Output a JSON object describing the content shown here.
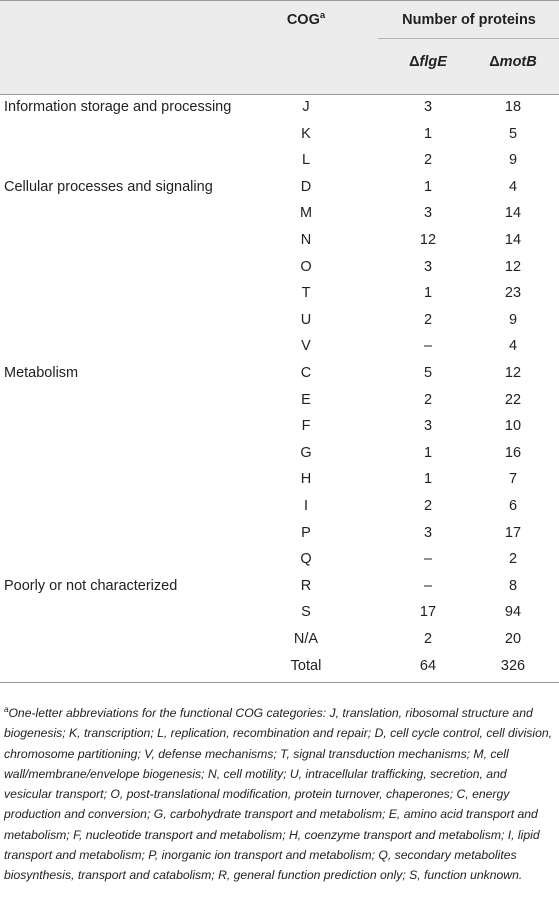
{
  "table": {
    "header": {
      "cog_label": "COG",
      "cog_sup": "a",
      "group_label": "Number of proteins",
      "col1_prefix": "Δ",
      "col1_name": "flgE",
      "col2_prefix": "Δ",
      "col2_name": "motB"
    },
    "rows": [
      {
        "category": "Information storage and processing",
        "cog": "J",
        "flgE": "3",
        "motB": "18"
      },
      {
        "category": "",
        "cog": "K",
        "flgE": "1",
        "motB": "5"
      },
      {
        "category": "",
        "cog": "L",
        "flgE": "2",
        "motB": "9"
      },
      {
        "category": "Cellular processes and signaling",
        "cog": "D",
        "flgE": "1",
        "motB": "4"
      },
      {
        "category": "",
        "cog": "M",
        "flgE": "3",
        "motB": "14"
      },
      {
        "category": "",
        "cog": "N",
        "flgE": "12",
        "motB": "14"
      },
      {
        "category": "",
        "cog": "O",
        "flgE": "3",
        "motB": "12"
      },
      {
        "category": "",
        "cog": "T",
        "flgE": "1",
        "motB": "23"
      },
      {
        "category": "",
        "cog": "U",
        "flgE": "2",
        "motB": "9"
      },
      {
        "category": "",
        "cog": "V",
        "flgE": "–",
        "motB": "4"
      },
      {
        "category": "Metabolism",
        "cog": "C",
        "flgE": "5",
        "motB": "12"
      },
      {
        "category": "",
        "cog": "E",
        "flgE": "2",
        "motB": "22"
      },
      {
        "category": "",
        "cog": "F",
        "flgE": "3",
        "motB": "10"
      },
      {
        "category": "",
        "cog": "G",
        "flgE": "1",
        "motB": "16"
      },
      {
        "category": "",
        "cog": "H",
        "flgE": "1",
        "motB": "7"
      },
      {
        "category": "",
        "cog": "I",
        "flgE": "2",
        "motB": "6"
      },
      {
        "category": "",
        "cog": "P",
        "flgE": "3",
        "motB": "17"
      },
      {
        "category": "",
        "cog": "Q",
        "flgE": "–",
        "motB": "2"
      },
      {
        "category": "Poorly or not characterized",
        "cog": "R",
        "flgE": "–",
        "motB": "8"
      },
      {
        "category": "",
        "cog": "S",
        "flgE": "17",
        "motB": "94"
      },
      {
        "category": "",
        "cog": "N/A",
        "flgE": "2",
        "motB": "20"
      },
      {
        "category": "",
        "cog": "Total",
        "flgE": "64",
        "motB": "326"
      }
    ],
    "footnote_marker": "a",
    "footnote": "One-letter abbreviations for the functional COG categories: J, translation, ribosomal structure and biogenesis; K, transcription; L, replication, recombination and repair; D, cell cycle control, cell division, chromosome partitioning; V, defense mechanisms; T, signal transduction mechanisms; M, cell wall/membrane/envelope biogenesis; N, cell motility; U, intracellular trafficking, secretion, and vesicular transport; O, post-translational modification, protein turnover, chaperones; C, energy production and conversion; G, carbohydrate transport and metabolism; E, amino acid transport and metabolism; F, nucleotide transport and metabolism; H, coenzyme transport and metabolism; I, lipid transport and metabolism; P, inorganic ion transport and metabolism; Q, secondary metabolites biosynthesis, transport and catabolism; R, general function prediction only; S, function unknown."
  }
}
